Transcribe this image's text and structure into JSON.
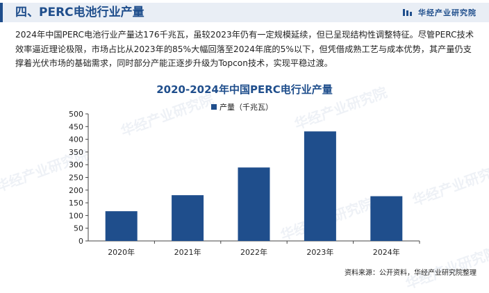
{
  "header": {
    "title": "四、PERC电池行业产量",
    "brand": "华经产业研究院"
  },
  "description": "2024年中国PERC电池行业产量达176千兆瓦，虽较2023年仍有一定规模延续，但已呈现结构性调整特征。尽管PERC技术效率逼近理论极限，市场占比从2023年的85%大幅回落至2024年底的5%以下，但凭借成熟工艺与成本优势，其产量仍支撑着光伏市场的基础需求，同时部分产能正逐步升级为Topcon技术，实现平稳过渡。",
  "watermark_text": "华经产业研究院",
  "source": "资料来源：公开资料，华经产业研究院整理",
  "colors": {
    "bar": "#1f4e8c",
    "title": "#1f4e8c",
    "axis": "#444444"
  },
  "chart_data": {
    "type": "bar",
    "title": "2020-2024年中国PERC电行业产量",
    "categories": [
      "2020年",
      "2021年",
      "2022年",
      "2023年",
      "2024年"
    ],
    "series": [
      {
        "name": "产量（千兆瓦）",
        "values": [
          117,
          180,
          289,
          431,
          176
        ]
      }
    ],
    "ylim": [
      0,
      500
    ],
    "yticks": [
      0,
      50,
      100,
      150,
      200,
      250,
      300,
      350,
      400,
      450,
      500
    ],
    "legend": "top-center",
    "grid": false
  }
}
